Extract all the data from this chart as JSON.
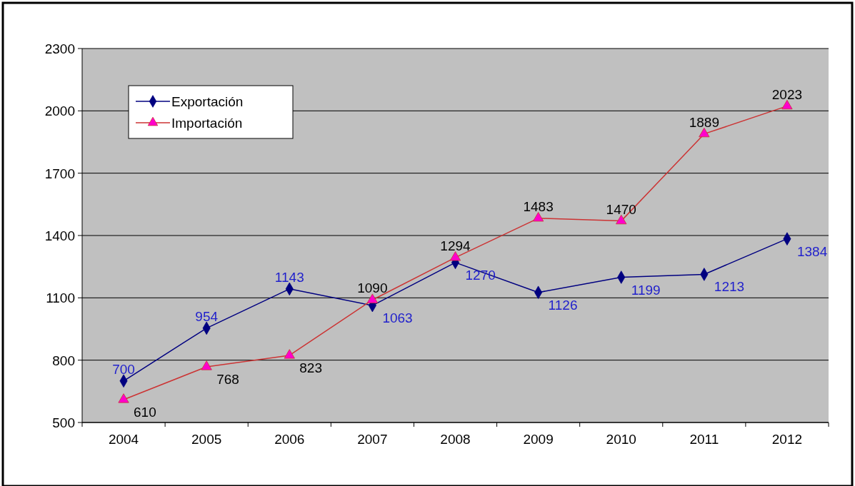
{
  "chart_data": {
    "type": "line",
    "categories": [
      "2004",
      "2005",
      "2006",
      "2007",
      "2008",
      "2009",
      "2010",
      "2011",
      "2012"
    ],
    "series": [
      {
        "name": "Exportación",
        "color": "#000080",
        "marker": "diamond",
        "values": [
          700,
          954,
          1143,
          1063,
          1270,
          1126,
          1199,
          1213,
          1384
        ]
      },
      {
        "name": "Importación",
        "color": "#cc3333",
        "marker": "triangle",
        "values": [
          610,
          768,
          823,
          1090,
          1294,
          1483,
          1470,
          1889,
          2023
        ]
      }
    ],
    "ylim": [
      500,
      2300
    ],
    "yticks": [
      500,
      800,
      1100,
      1400,
      1700,
      2000,
      2300
    ],
    "grid": "y",
    "legend": "top left",
    "data_labels": true
  }
}
